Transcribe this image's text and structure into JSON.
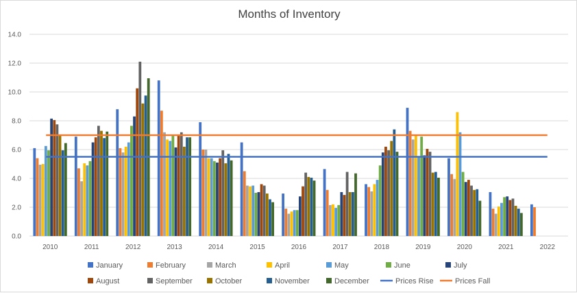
{
  "chart_data": {
    "type": "bar",
    "title": "Months of Inventory",
    "xlabel": "",
    "ylabel": "",
    "ylim": [
      0,
      14
    ],
    "yticks": [
      "0.0",
      "2.0",
      "4.0",
      "6.0",
      "8.0",
      "10.0",
      "12.0",
      "14.0"
    ],
    "grid": true,
    "legend": "bottom",
    "categories": [
      "2010",
      "2011",
      "2012",
      "2013",
      "2014",
      "2015",
      "2016",
      "2017",
      "2018",
      "2019",
      "2020",
      "2021",
      "2022"
    ],
    "series": [
      {
        "name": "January",
        "color": "#4472c4",
        "values": [
          6.1,
          6.9,
          8.8,
          10.8,
          7.9,
          6.5,
          2.95,
          4.65,
          3.6,
          8.9,
          5.4,
          3.05,
          2.2
        ]
      },
      {
        "name": "February",
        "color": "#ed7d31",
        "values": [
          5.4,
          4.7,
          6.1,
          8.7,
          6.0,
          4.5,
          1.9,
          3.2,
          3.4,
          7.3,
          4.3,
          1.9,
          2.0
        ]
      },
      {
        "name": "March",
        "color": "#a5a5a5",
        "values": [
          4.95,
          3.8,
          5.8,
          7.2,
          6.0,
          3.5,
          1.55,
          2.15,
          3.1,
          6.7,
          3.95,
          1.55,
          null
        ]
      },
      {
        "name": "April",
        "color": "#ffc000",
        "values": [
          5.0,
          5.05,
          6.2,
          6.7,
          5.4,
          3.45,
          1.7,
          2.2,
          3.6,
          7.0,
          8.6,
          2.05,
          null
        ]
      },
      {
        "name": "May",
        "color": "#5b9bd5",
        "values": [
          6.25,
          4.9,
          6.5,
          6.6,
          5.4,
          3.5,
          1.8,
          1.95,
          3.9,
          5.5,
          7.2,
          2.3,
          null
        ]
      },
      {
        "name": "June",
        "color": "#70ad47",
        "values": [
          5.95,
          5.2,
          7.65,
          6.95,
          5.2,
          3.0,
          1.8,
          2.15,
          4.9,
          6.9,
          4.45,
          2.7,
          null
        ]
      },
      {
        "name": "July",
        "color": "#264478",
        "values": [
          8.15,
          6.5,
          8.3,
          6.15,
          5.1,
          3.05,
          2.75,
          3.05,
          5.8,
          5.6,
          3.75,
          2.75,
          null
        ]
      },
      {
        "name": "August",
        "color": "#9e480e",
        "values": [
          8.05,
          6.85,
          10.25,
          6.95,
          5.4,
          3.6,
          3.45,
          2.85,
          6.2,
          6.05,
          3.9,
          2.5,
          null
        ]
      },
      {
        "name": "September",
        "color": "#636363",
        "values": [
          7.75,
          7.65,
          12.1,
          7.2,
          5.95,
          3.5,
          4.4,
          4.45,
          5.95,
          5.85,
          3.5,
          2.6,
          null
        ]
      },
      {
        "name": "October",
        "color": "#997300",
        "values": [
          6.95,
          7.3,
          9.2,
          6.2,
          5.05,
          2.95,
          4.1,
          3.05,
          6.6,
          4.4,
          3.2,
          2.1,
          null
        ]
      },
      {
        "name": "November",
        "color": "#255e91",
        "values": [
          5.95,
          6.8,
          9.75,
          6.85,
          5.7,
          2.55,
          4.05,
          3.05,
          7.4,
          4.45,
          3.25,
          1.9,
          null
        ]
      },
      {
        "name": "December",
        "color": "#43682b",
        "values": [
          6.45,
          7.25,
          10.95,
          6.85,
          5.25,
          2.35,
          3.85,
          4.35,
          5.85,
          4.05,
          2.45,
          1.6,
          null
        ]
      }
    ],
    "reference_lines": [
      {
        "name": "Prices Rise",
        "color": "#4472c4",
        "value": 5.5
      },
      {
        "name": "Prices Fall",
        "color": "#ed7d31",
        "value": 7.0
      }
    ]
  }
}
